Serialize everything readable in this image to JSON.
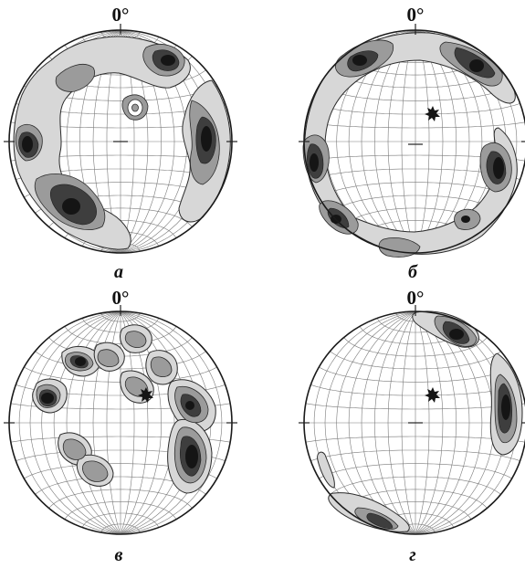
{
  "figure": {
    "panels": [
      {
        "id": "a",
        "north_label": "0°",
        "caption": "а"
      },
      {
        "id": "b",
        "north_label": "0°",
        "caption": "б"
      },
      {
        "id": "c",
        "north_label": "0°",
        "caption": "в"
      },
      {
        "id": "d",
        "north_label": "0°",
        "caption": "г"
      }
    ]
  },
  "colors": {
    "rim": "#1a1a1a",
    "grid": "#7a7a7a",
    "contour_light": "#d7d7d7",
    "contour_mid": "#9b9b9b",
    "contour_dark": "#3e3e3e",
    "maximum": "#151515"
  }
}
